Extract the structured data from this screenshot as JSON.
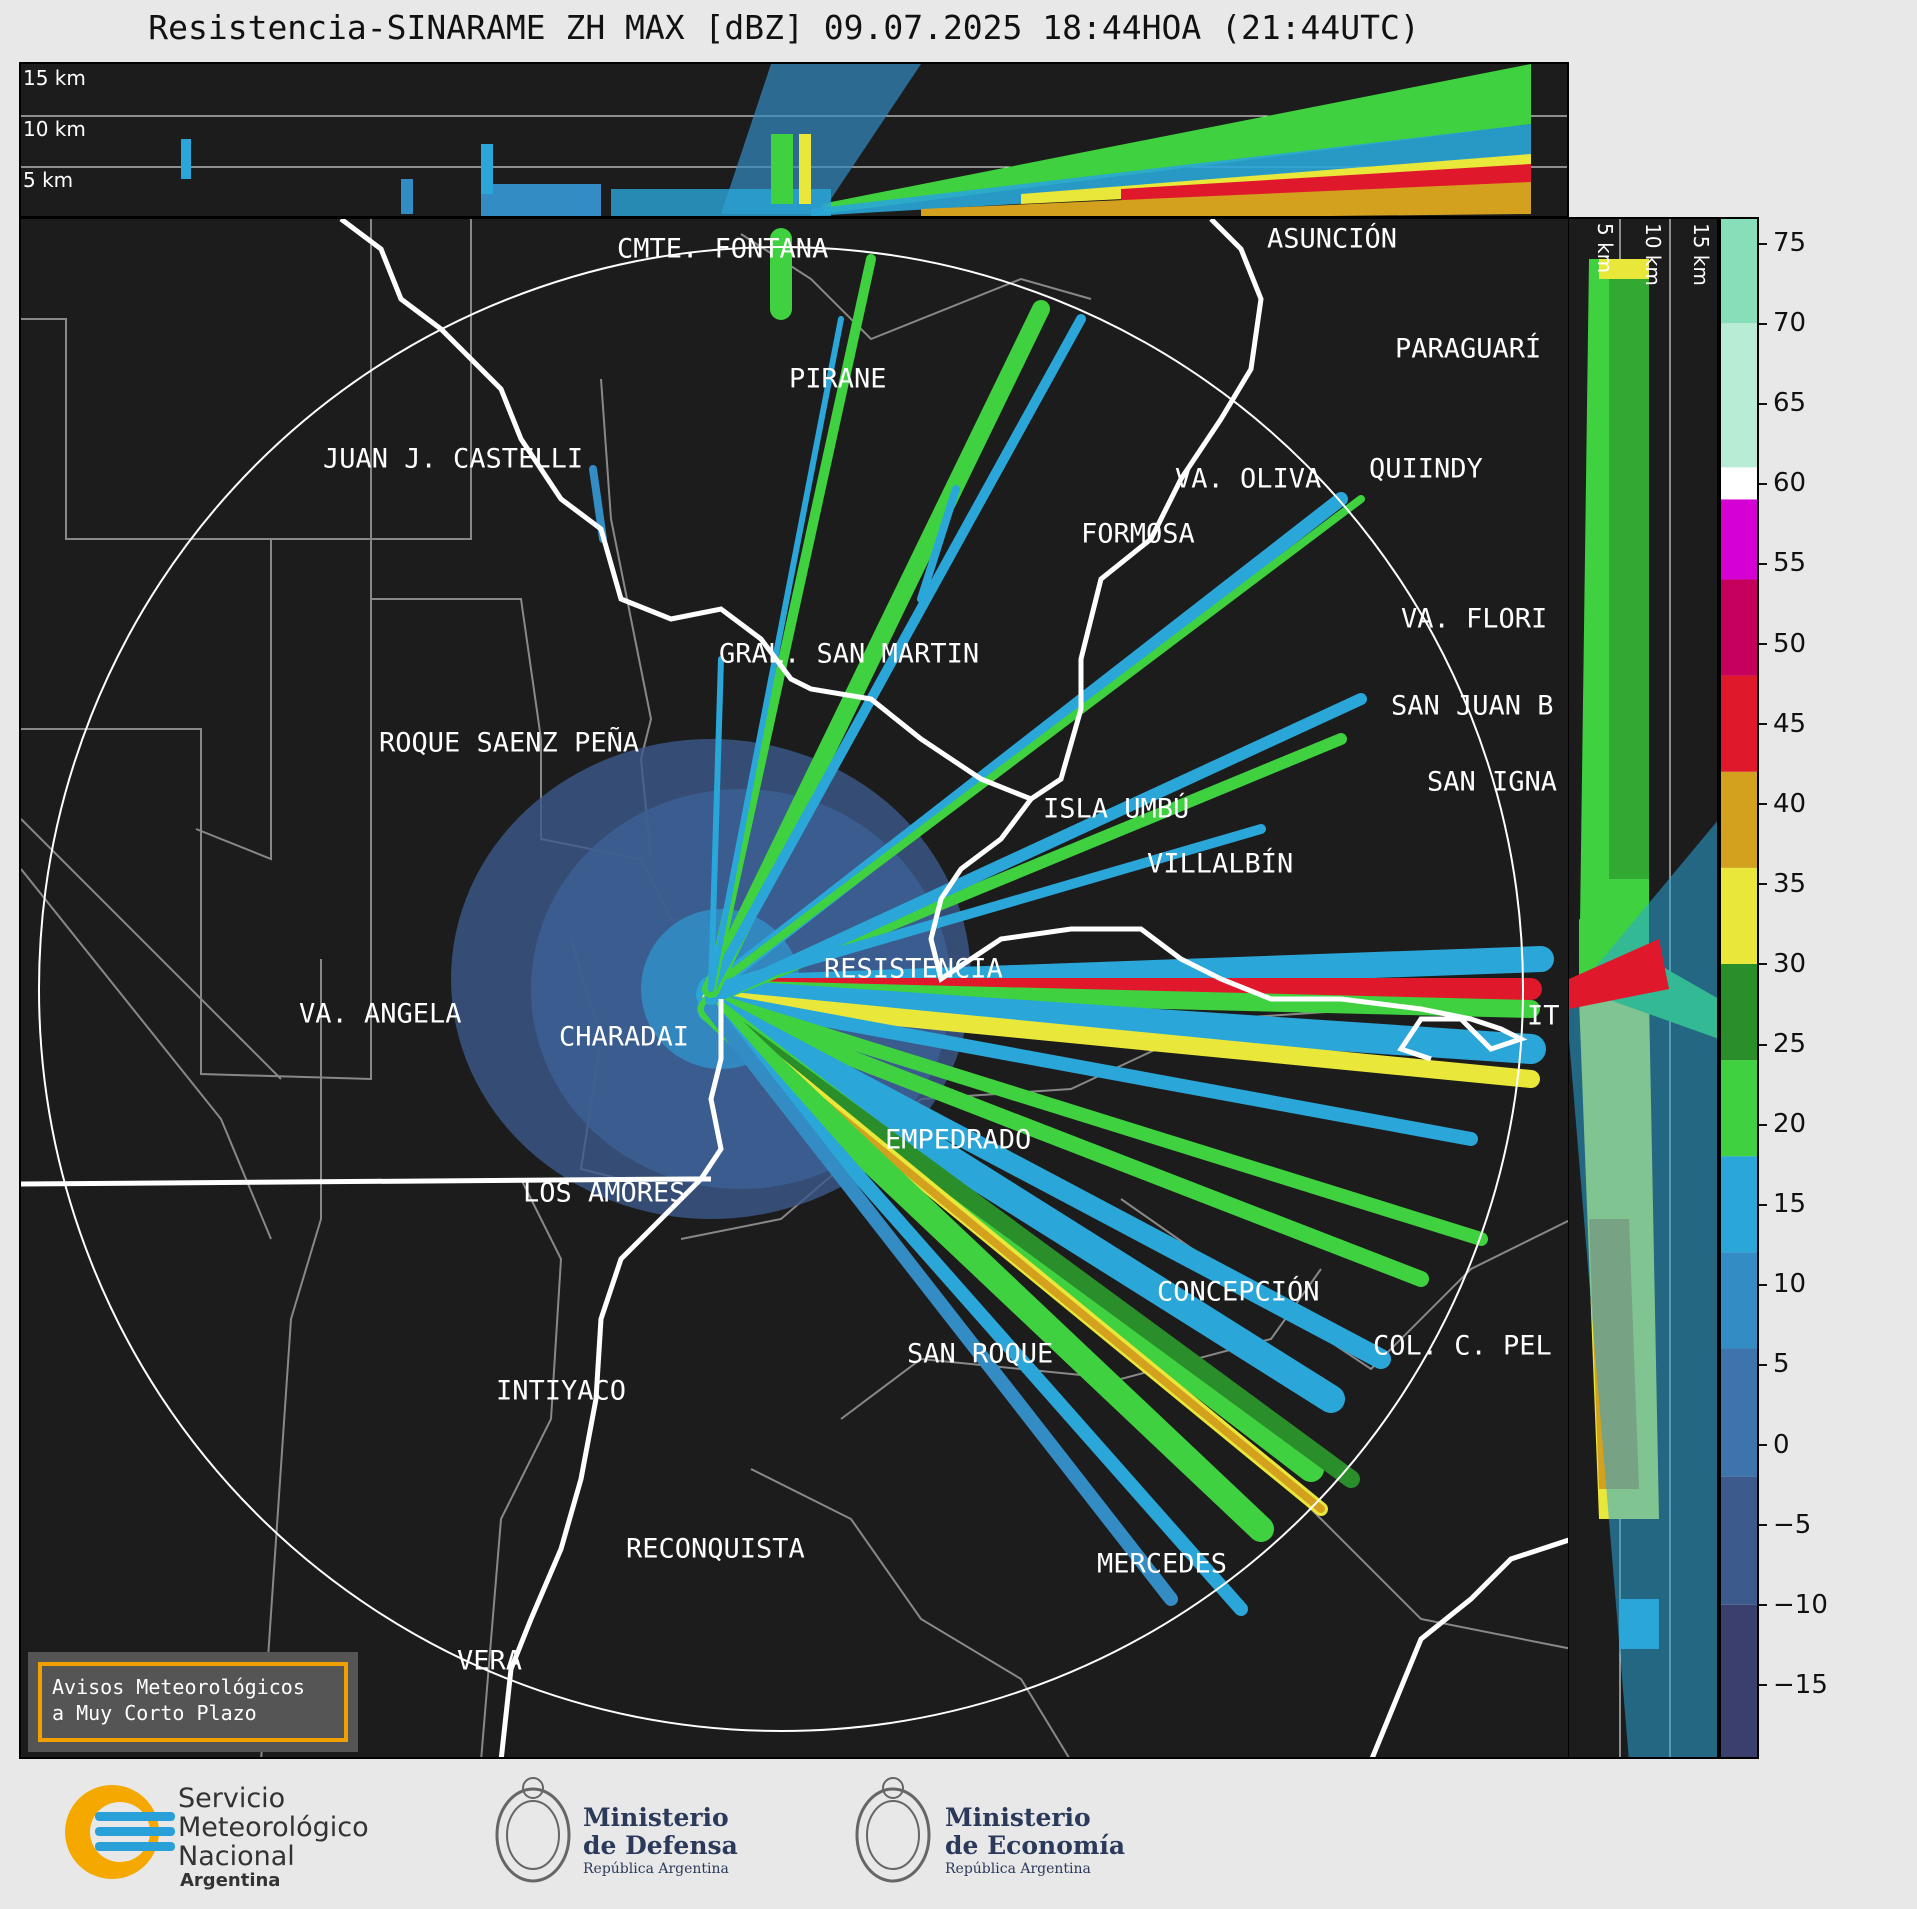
{
  "title": "Resistencia-SINARAME ZH MAX [dBZ] 09.07.2025 18:44HOA (21:44UTC)",
  "top_strip": {
    "height_labels": [
      "15 km",
      "10 km",
      "5 km"
    ]
  },
  "side_strip": {
    "height_labels": [
      "5 km",
      "10 km",
      "15 km"
    ]
  },
  "colorbar": {
    "unit": "dBZ",
    "ticks": [
      "75",
      "70",
      "65",
      "60",
      "55",
      "50",
      "45",
      "40",
      "35",
      "30",
      "25",
      "20",
      "15",
      "10",
      "5",
      "0",
      "−5",
      "−10",
      "−15"
    ],
    "tick_values": [
      75,
      70,
      65,
      60,
      55,
      50,
      45,
      40,
      35,
      30,
      25,
      20,
      15,
      10,
      5,
      0,
      -5,
      -10,
      -15
    ],
    "range": [
      -19.5,
      76.5
    ],
    "colors": [
      {
        "from": -19.5,
        "to": -10,
        "color": "#3b3f6e"
      },
      {
        "from": -10,
        "to": -2,
        "color": "#3c5a8c"
      },
      {
        "from": -2,
        "to": 6,
        "color": "#3d74ab"
      },
      {
        "from": 6,
        "to": 12,
        "color": "#338cc4"
      },
      {
        "from": 12,
        "to": 18,
        "color": "#2aa6d8"
      },
      {
        "from": 18,
        "to": 24,
        "color": "#3fd13f"
      },
      {
        "from": 24,
        "to": 30,
        "color": "#2a8e2a"
      },
      {
        "from": 30,
        "to": 36,
        "color": "#e9e83a"
      },
      {
        "from": 36,
        "to": 42,
        "color": "#d4a11e"
      },
      {
        "from": 42,
        "to": 48,
        "color": "#e0182c"
      },
      {
        "from": 48,
        "to": 54,
        "color": "#c5005c"
      },
      {
        "from": 54,
        "to": 59,
        "color": "#d400d4"
      },
      {
        "from": 59,
        "to": 61,
        "color": "#ffffff"
      },
      {
        "from": 61,
        "to": 70,
        "color": "#b8ecd4"
      },
      {
        "from": 70,
        "to": 76.5,
        "color": "#86dfb8"
      }
    ]
  },
  "cities": [
    {
      "name": "CMTE. FONTANA",
      "label": "CMTE. FONTANA"
    },
    {
      "name": "ASUNCION",
      "label": "ASUNCIÓN"
    },
    {
      "name": "PARAGUARI",
      "label": "PARAGUARÍ"
    },
    {
      "name": "PIRANE",
      "label": "PIRANE"
    },
    {
      "name": "JUAN J CASTELLI",
      "label": "JUAN J. CASTELLI"
    },
    {
      "name": "VA OLIVA",
      "label": "VA. OLIVA"
    },
    {
      "name": "QUIINDY",
      "label": "QUIINDY"
    },
    {
      "name": "FORMOSA",
      "label": "FORMOSA"
    },
    {
      "name": "VA FLORIDA",
      "label": "VA. FLORI"
    },
    {
      "name": "GRAL SAN MARTIN",
      "label": "GRAL. SAN MARTIN"
    },
    {
      "name": "SAN JUAN B",
      "label": "SAN JUAN B"
    },
    {
      "name": "ROQUE SAENZ PENA",
      "label": "ROQUE SAENZ PEÑA"
    },
    {
      "name": "SAN IGNACIO",
      "label": "SAN IGNA"
    },
    {
      "name": "ISLA UMBU",
      "label": "ISLA UMBÚ"
    },
    {
      "name": "VILLALBIN",
      "label": "VILLALBÍN"
    },
    {
      "name": "RESISTENCIA",
      "label": "RESISTENCIA"
    },
    {
      "name": "VA ANGELA",
      "label": "VA. ANGELA"
    },
    {
      "name": "CHARADAI",
      "label": "CHARADAI"
    },
    {
      "name": "ITATI",
      "label": "IT"
    },
    {
      "name": "EMPEDRADO",
      "label": "EMPEDRADO"
    },
    {
      "name": "LOS AMORES",
      "label": "LOS AMORES"
    },
    {
      "name": "CONCEPCION",
      "label": "CONCEPCIÓN"
    },
    {
      "name": "COL C PELLEGRINI",
      "label": "COL. C. PEL"
    },
    {
      "name": "SAN ROQUE",
      "label": "SAN ROQUE"
    },
    {
      "name": "INTIYACO",
      "label": "INTIYACO"
    },
    {
      "name": "RECONQUISTA",
      "label": "RECONQUISTA"
    },
    {
      "name": "MERCEDES",
      "label": "MERCEDES"
    },
    {
      "name": "VERA",
      "label": "VERA"
    }
  ],
  "notice": {
    "text": "Avisos Meteorológicos\na Muy Corto Plazo"
  },
  "footer": {
    "smn": [
      "Servicio",
      "Meteorológico",
      "Nacional",
      "Argentina"
    ],
    "defensa": [
      "Ministerio",
      "de Defensa",
      "República Argentina"
    ],
    "economia": [
      "Ministerio",
      "de Economía",
      "República Argentina"
    ]
  }
}
